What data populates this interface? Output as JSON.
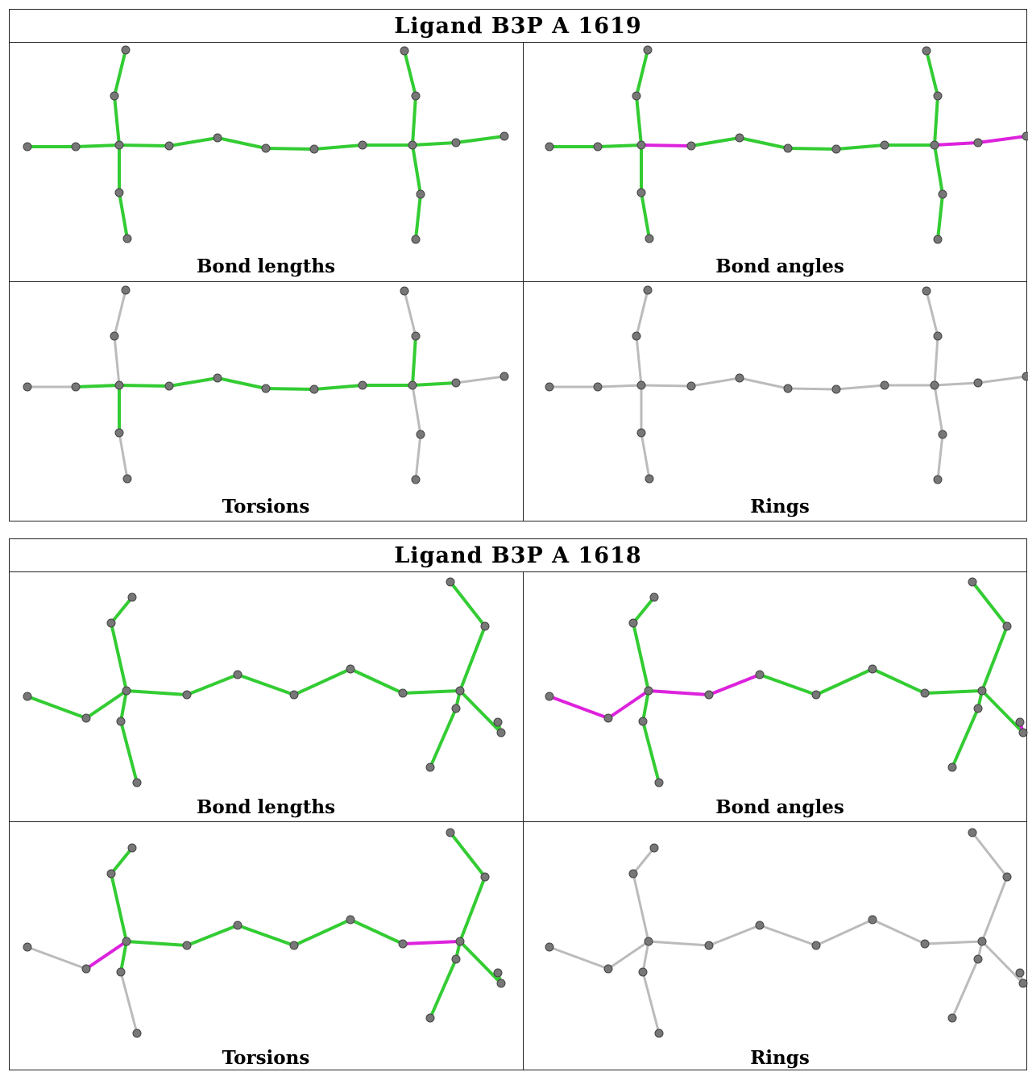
{
  "colors": {
    "ok": "#33cc33",
    "outlier": "#dd22dd",
    "plain": "#bbbbbb",
    "atom": "#777777"
  },
  "blocks": [
    {
      "title": "Ligand B3P A 1619",
      "panels": [
        {
          "caption": "Bond lengths",
          "mode": "lengths"
        },
        {
          "caption": "Bond angles",
          "mode": "angles"
        },
        {
          "caption": "Torsions",
          "mode": "torsions"
        },
        {
          "caption": "Rings",
          "mode": "rings"
        }
      ]
    },
    {
      "title": "Ligand B3P A 1618",
      "panels": [
        {
          "caption": "Bond lengths",
          "mode": "lengths"
        },
        {
          "caption": "Bond angles",
          "mode": "angles"
        },
        {
          "caption": "Torsions",
          "mode": "torsions"
        },
        {
          "caption": "Rings",
          "mode": "rings"
        }
      ]
    }
  ]
}
